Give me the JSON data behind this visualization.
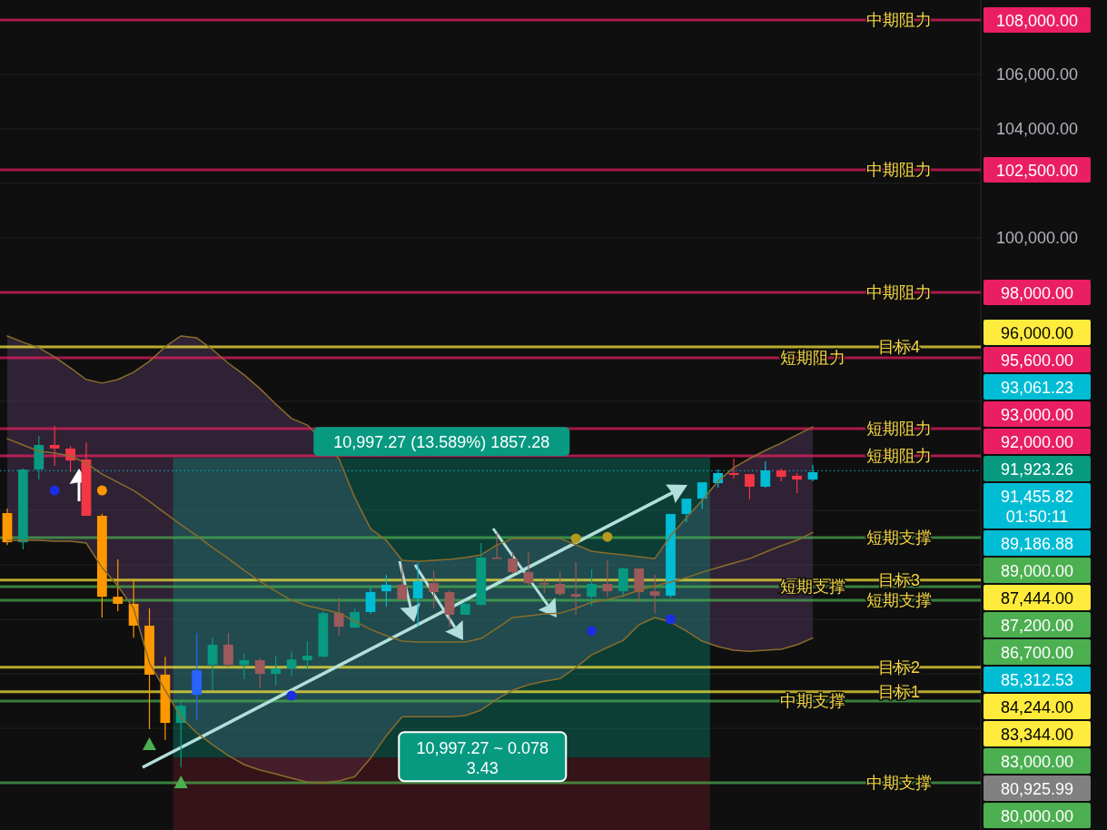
{
  "chart_data": {
    "type": "candlestick",
    "categories": [
      null,
      null,
      null,
      null,
      null,
      null,
      null,
      null,
      null,
      null,
      null,
      null,
      null,
      null,
      null,
      null,
      null,
      null,
      null,
      null,
      null,
      null,
      null,
      null,
      null,
      null,
      null,
      null,
      null,
      null,
      null,
      null,
      null,
      null,
      null,
      null,
      null,
      null,
      null,
      null,
      null,
      null,
      null,
      null,
      null,
      null,
      null,
      null,
      null,
      null,
      null,
      null
    ],
    "ylim": [
      78270,
      108730
    ],
    "yticks": [
      {
        "value": 80000,
        "label": null
      },
      {
        "value": 82000,
        "label": null
      },
      {
        "value": 84000,
        "label": null
      },
      {
        "value": 86000,
        "label": null
      },
      {
        "value": 88000,
        "label": null
      },
      {
        "value": 90000,
        "label": null
      },
      {
        "value": 92000,
        "label": null
      },
      {
        "value": 94000,
        "label": null
      },
      {
        "value": 96000,
        "label": null
      },
      {
        "value": 98000,
        "label": null
      },
      {
        "value": 100000,
        "label": "100,000.00"
      },
      {
        "value": 102000,
        "label": null
      },
      {
        "value": 104000,
        "label": "104,000.00"
      },
      {
        "value": 106000,
        "label": "106,000.00"
      },
      {
        "value": 108000,
        "label": null
      }
    ],
    "grid": "y",
    "tick_labels": "y",
    "series": [
      {
        "type": "line",
        "color": "#8a6d2c",
        "values": [
          92630,
          92400,
          92170,
          92100,
          92000,
          91730,
          91330,
          91030,
          90730,
          90330,
          89900,
          89470,
          89070,
          88630,
          88230,
          87800,
          87400,
          87030,
          86700,
          86500,
          86370,
          86230,
          85930,
          85630,
          85400,
          85200,
          85170,
          85170,
          85170,
          85170,
          85300,
          85670,
          86070,
          86130,
          86200,
          86230,
          86400,
          86630,
          86730,
          86870,
          87070,
          87230,
          87370,
          87530,
          87730,
          87900,
          88070,
          88230,
          88470,
          88700,
          88900,
          89186.88
        ],
        "lower": [
          88900,
          88900,
          88900,
          88870,
          88870,
          88800,
          87900,
          87230,
          86400,
          84400,
          83400,
          82400,
          81830,
          81400,
          81000,
          80670,
          80470,
          80330,
          80170,
          80030,
          null,
          80070,
          80230,
          80900,
          81730,
          82430,
          82430,
          82430,
          82430,
          82470,
          82670,
          83070,
          83400,
          83600,
          83730,
          83830,
          null,
          84700,
          84970,
          85230,
          85800,
          86070,
          85900,
          85570,
          85200,
          85000,
          84870,
          84830,
          84870,
          84900,
          85070,
          85312.53
        ],
        "upper": [
          96400,
          96170,
          95970,
          95630,
          95230,
          94800,
          94670,
          94800,
          95070,
          95470,
          96000,
          96400,
          96330,
          95900,
          95400,
          94970,
          94470,
          93900,
          93370,
          93130,
          null,
          91900,
          90470,
          89330,
          88900,
          88170,
          88130,
          88170,
          88200,
          88270,
          88370,
          88730,
          88970,
          88970,
          88970,
          88970,
          null,
          88500,
          88430,
          88370,
          88300,
          88230,
          89070,
          89730,
          90370,
          91070,
          91570,
          91900,
          92200,
          92470,
          92770,
          93061.23
        ]
      },
      {
        "type": "line",
        "color": "#8a6d2c",
        "values": [
          96400,
          96170,
          95970,
          95630,
          95230,
          94800,
          94670,
          94800,
          95070,
          95470,
          96000,
          96400,
          96330,
          95900,
          95400,
          94970,
          94470,
          93900,
          93370,
          93130,
          null,
          91900,
          90470,
          89330,
          88900,
          88170,
          88130,
          88170,
          88200,
          88270,
          88370,
          88730,
          88970,
          88970,
          88970,
          88970,
          null,
          88500,
          88430,
          88370,
          88300,
          88230,
          89070,
          89730,
          90370,
          91070,
          91570,
          91900,
          92200,
          92470,
          92770,
          93061.23
        ]
      },
      {
        "type": "line",
        "color": "#8a6d2c",
        "values": [
          88900,
          88900,
          88900,
          88870,
          88870,
          88800,
          87900,
          87230,
          86400,
          84400,
          83400,
          82400,
          81830,
          81400,
          81000,
          80670,
          80470,
          80330,
          80170,
          80030,
          80000,
          80070,
          80230,
          80900,
          81730,
          82430,
          82430,
          82430,
          82430,
          82470,
          82670,
          83070,
          83400,
          83600,
          83730,
          83830,
          84230,
          84700,
          84970,
          85230,
          85800,
          86070,
          85900,
          85570,
          85200,
          85000,
          84870,
          84830,
          84870,
          84900,
          85070,
          85312.53
        ]
      },
      {
        "ohlc": [
          [
            89900,
            90070,
            88730,
            88830
          ],
          [
            88830,
            91530,
            88570,
            91500
          ],
          [
            91500,
            92730,
            91130,
            92400
          ],
          [
            92400,
            93100,
            91630,
            92270
          ],
          [
            92270,
            92370,
            91400,
            91830
          ],
          [
            91870,
            92500,
            89800,
            89800
          ],
          [
            89800,
            89870,
            86070,
            86830
          ],
          [
            86830,
            88200,
            86300,
            86570
          ],
          [
            86570,
            87430,
            85330,
            85770
          ],
          [
            85770,
            86400,
            81970,
            83970
          ],
          [
            83970,
            84630,
            81570,
            82200
          ],
          [
            82200,
            83070,
            80570,
            82830
          ],
          [
            83230,
            85500,
            82300,
            84130
          ],
          [
            84330,
            85330,
            83400,
            85070
          ],
          [
            85070,
            85500,
            84230,
            84330
          ],
          [
            84330,
            84730,
            83800,
            84500
          ],
          [
            84500,
            84570,
            83470,
            84000
          ],
          [
            84000,
            84670,
            83570,
            84200
          ],
          [
            84200,
            84830,
            83900,
            84530
          ],
          [
            84500,
            85200,
            84170,
            84670
          ],
          [
            84630,
            86300,
            84600,
            86230
          ],
          [
            86230,
            86800,
            85400,
            85730
          ],
          [
            85700,
            86400,
            85670,
            86270
          ],
          [
            86270,
            87170,
            86200,
            87000
          ],
          [
            87030,
            87630,
            86470,
            87270
          ],
          [
            87270,
            88000,
            86670,
            86730
          ],
          [
            86770,
            88070,
            85730,
            87400
          ],
          [
            87330,
            87800,
            86400,
            87000
          ],
          [
            87000,
            87070,
            85730,
            86170
          ],
          [
            86170,
            86670,
            86170,
            86570
          ],
          [
            86530,
            88800,
            86530,
            88270
          ],
          [
            88270,
            89170,
            88230,
            88230
          ],
          [
            88230,
            88470,
            87670,
            87730
          ],
          [
            87730,
            88470,
            87230,
            87330
          ],
          [
            87330,
            87530,
            86970,
            87300
          ],
          [
            87300,
            87730,
            86870,
            86930
          ],
          [
            86930,
            88100,
            86170,
            86830
          ],
          [
            86830,
            87830,
            86500,
            87300
          ],
          [
            87300,
            88170,
            86830,
            87030
          ],
          [
            87030,
            87900,
            86830,
            87870
          ],
          [
            87870,
            87870,
            86630,
            87000
          ],
          [
            87030,
            87630,
            86230,
            86870
          ],
          [
            86870,
            89870,
            86800,
            89870
          ],
          [
            89870,
            90430,
            89570,
            90430
          ],
          [
            90430,
            91030,
            90070,
            91030
          ],
          [
            91000,
            91500,
            90830,
            91370
          ],
          [
            91370,
            91900,
            91170,
            91300
          ],
          [
            91330,
            91330,
            90400,
            90870
          ],
          [
            90870,
            91800,
            90830,
            91470
          ],
          [
            91470,
            91530,
            91070,
            91230
          ],
          [
            91270,
            91370,
            90630,
            91130
          ],
          [
            91130,
            91670,
            91070,
            91400
          ]
        ],
        "colors": [
          "#ff9800",
          "#089981",
          "#089981",
          "#f23645",
          "#f23645",
          "#f23645",
          "#ff9800",
          "#ff9800",
          "#ff9800",
          "#ff9800",
          "#ff9800",
          "#089981",
          "#2962ff",
          "#089981",
          "#9c5a5a",
          "#089981",
          "#9c5a5a",
          "#089981",
          "#089981",
          "#089981",
          "#089981",
          "#9c5a5a",
          "#089981",
          "#00bcd4",
          "#00bcd4",
          "#9c5a5a",
          "#00bcd4",
          "#9c5a5a",
          "#9c5a5a",
          "#089981",
          "#089981",
          "#9c5a5a",
          "#9c5a5a",
          "#9c5a5a",
          "#9c5a5a",
          "#9c5a5a",
          "#9c5a5a",
          "#089981",
          "#9c5a5a",
          "#089981",
          "#9c5a5a",
          "#9c5a5a",
          "#00bcd4",
          "#00bcd4",
          "#00bcd4",
          "#00bcd4",
          "#f23645",
          "#f23645",
          "#00bcd4",
          "#f23645",
          "#f23645",
          "#00bcd4"
        ]
      },
      {
        "type": "scatter",
        "marker": "circle",
        "color": "#1a2ee0",
        "values": [
          null,
          null,
          null,
          90730,
          null,
          null,
          null,
          null,
          null,
          null,
          null,
          null,
          null,
          null,
          null,
          null,
          null,
          null,
          83200,
          null,
          null,
          null,
          null,
          null,
          null,
          null,
          null,
          null,
          null,
          null,
          null,
          null,
          null,
          null,
          null,
          null,
          null,
          85570,
          null,
          null,
          null,
          null,
          86000,
          null,
          null,
          null,
          null,
          null,
          null,
          null,
          null,
          null
        ]
      },
      {
        "type": "scatter",
        "marker": "circle",
        "color": "#ff9800",
        "values": [
          null,
          null,
          null,
          null,
          null,
          null,
          90730,
          null,
          null,
          null,
          null,
          null,
          null,
          null,
          null,
          null,
          null,
          null,
          null,
          null,
          null,
          null,
          null,
          null,
          null,
          null,
          null,
          null,
          null,
          null,
          null,
          null,
          null,
          null,
          null,
          null,
          null,
          null,
          null,
          null,
          null,
          null,
          null,
          null,
          null,
          null,
          null,
          null,
          null,
          null,
          null,
          null
        ]
      },
      {
        "type": "scatter",
        "marker": "circle",
        "color": "#b59a1e",
        "values": [
          null,
          null,
          null,
          null,
          null,
          null,
          null,
          null,
          null,
          null,
          null,
          null,
          null,
          null,
          null,
          null,
          null,
          null,
          null,
          null,
          null,
          null,
          null,
          null,
          null,
          null,
          null,
          null,
          null,
          null,
          null,
          null,
          null,
          null,
          null,
          null,
          88970,
          null,
          89030,
          null,
          null,
          null,
          null,
          null,
          null,
          null,
          null,
          null,
          null,
          null,
          null,
          null
        ]
      },
      {
        "type": "scatter",
        "marker": "triangle",
        "color": "#4caf50",
        "values": [
          null,
          null,
          null,
          null,
          null,
          null,
          null,
          null,
          null,
          81400,
          null,
          80000,
          null,
          null,
          null,
          null,
          null,
          null,
          null,
          null,
          null,
          null,
          null,
          null,
          null,
          null,
          null,
          null,
          null,
          null,
          null,
          null,
          null,
          null,
          null,
          null,
          null,
          null,
          null,
          null,
          null,
          null,
          null,
          null,
          null,
          null,
          null,
          null,
          null,
          null,
          null,
          null
        ]
      }
    ],
    "bands": [
      {
        "axis": "y",
        "from": 80925.99,
        "to": 91923.26,
        "color": "#089981"
      }
    ],
    "ref_lines": [
      {
        "axis": "y",
        "value": 108000,
        "label": "中期阻力",
        "color": "#e91e63"
      },
      {
        "axis": "y",
        "value": 102500,
        "label": "中期阻力",
        "color": "#e91e63"
      },
      {
        "axis": "y",
        "value": 98000,
        "label": "中期阻力",
        "color": "#e91e63"
      },
      {
        "axis": "y",
        "value": 96000,
        "label": "目标4",
        "color": "#ffeb3b"
      },
      {
        "axis": "y",
        "value": 95600,
        "label": "短期阻力",
        "color": "#e91e63"
      },
      {
        "axis": "y",
        "value": 93000,
        "label": "短期阻力",
        "color": "#e91e63"
      },
      {
        "axis": "y",
        "value": 92000,
        "label": "短期阻力",
        "color": "#e91e63"
      },
      {
        "axis": "y",
        "value": 91455.82,
        "color": "#00bcd4",
        "line_style": "dotted"
      },
      {
        "axis": "y",
        "value": 89000,
        "label": "短期支撑",
        "color": "#4caf50"
      },
      {
        "axis": "y",
        "value": 87444,
        "label": "目标3",
        "color": "#ffeb3b"
      },
      {
        "axis": "y",
        "value": 87200,
        "label": "短期支撑",
        "color": "#4caf50"
      },
      {
        "axis": "y",
        "value": 86700,
        "label": "短期支撑",
        "color": "#4caf50"
      },
      {
        "axis": "y",
        "value": 84244,
        "label": "目标2",
        "color": "#ffeb3b"
      },
      {
        "axis": "y",
        "value": 83344,
        "label": "目标1",
        "color": "#ffeb3b"
      },
      {
        "axis": "y",
        "value": 83000,
        "label": "中期支撑",
        "color": "#4caf50"
      },
      {
        "axis": "y",
        "value": 80000,
        "label": "中期支撑",
        "color": "#4caf50"
      }
    ],
    "annotations": [
      "10,997.27 (13.589%) 1857.28",
      "10,997.27 ~ 0.078",
      "3.43",
      "108,000.00",
      "102,500.00",
      "98,000.00",
      "96,000.00",
      "95,600.00",
      "93,061.23",
      "93,000.00",
      "92,000.00",
      "91,923.26",
      "91,455.82 01:50:11",
      "89,186.88",
      "89,000.00",
      "87,444.00",
      "87,200.00",
      "86,700.00",
      "85,312.53",
      "84,244.00",
      "83,344.00",
      "83,000.00",
      "80,925.99",
      "80,000.00"
    ]
  }
}
